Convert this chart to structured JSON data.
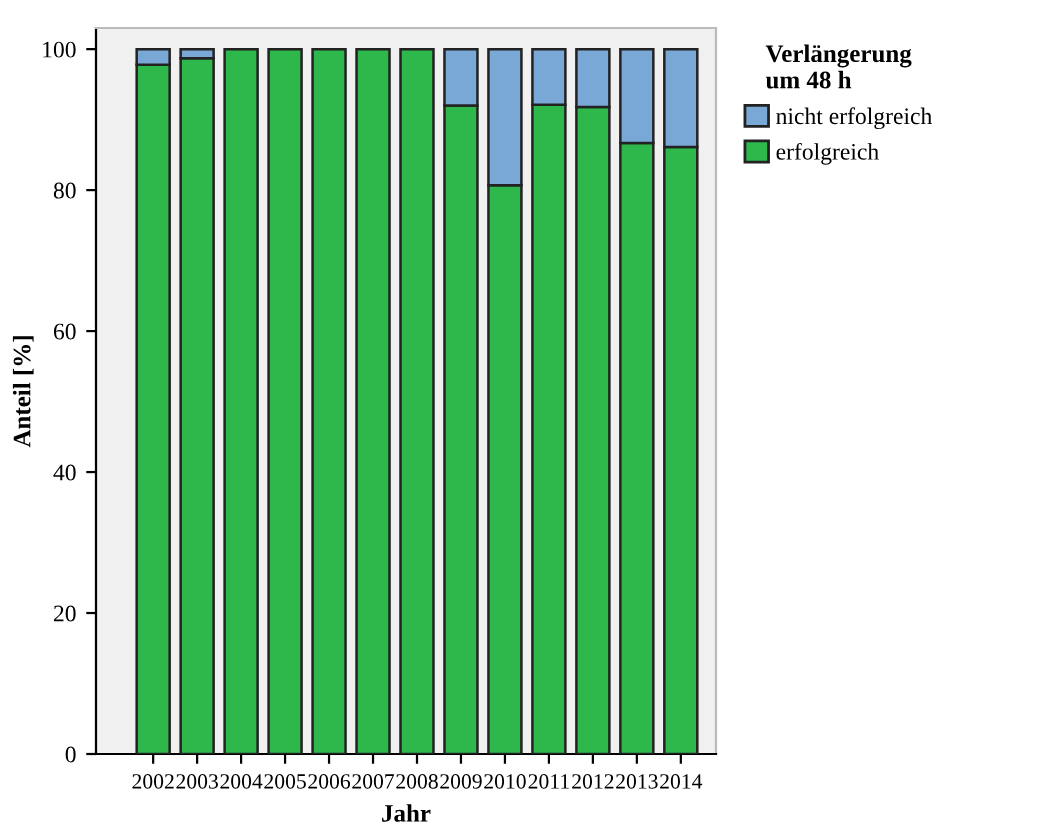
{
  "chart_data": {
    "type": "bar",
    "stacked": true,
    "xlabel": "Jahr",
    "ylabel": "Anteil [%]",
    "legend_title": "Verlängerung\num 48 h",
    "legend": "right",
    "categories": [
      "2002",
      "2003",
      "2004",
      "2005",
      "2006",
      "2007",
      "2008",
      "2009",
      "2010",
      "2011",
      "2012",
      "2013",
      "2014"
    ],
    "series": [
      {
        "name": "erfolgreich",
        "color": "#2eb84b",
        "values": [
          97.8,
          98.7,
          100,
          100,
          100,
          100,
          100,
          92.0,
          80.7,
          92.1,
          91.8,
          86.7,
          86.1
        ]
      },
      {
        "name": "nicht erfolgreich",
        "color": "#79a8d6",
        "values": [
          2.2,
          1.3,
          null,
          null,
          null,
          null,
          null,
          8.0,
          19.3,
          7.9,
          8.2,
          13.3,
          13.9
        ]
      }
    ],
    "ylim": [
      0,
      103
    ],
    "yticks": [
      0,
      20,
      40,
      60,
      80,
      100
    ],
    "grid": false
  }
}
